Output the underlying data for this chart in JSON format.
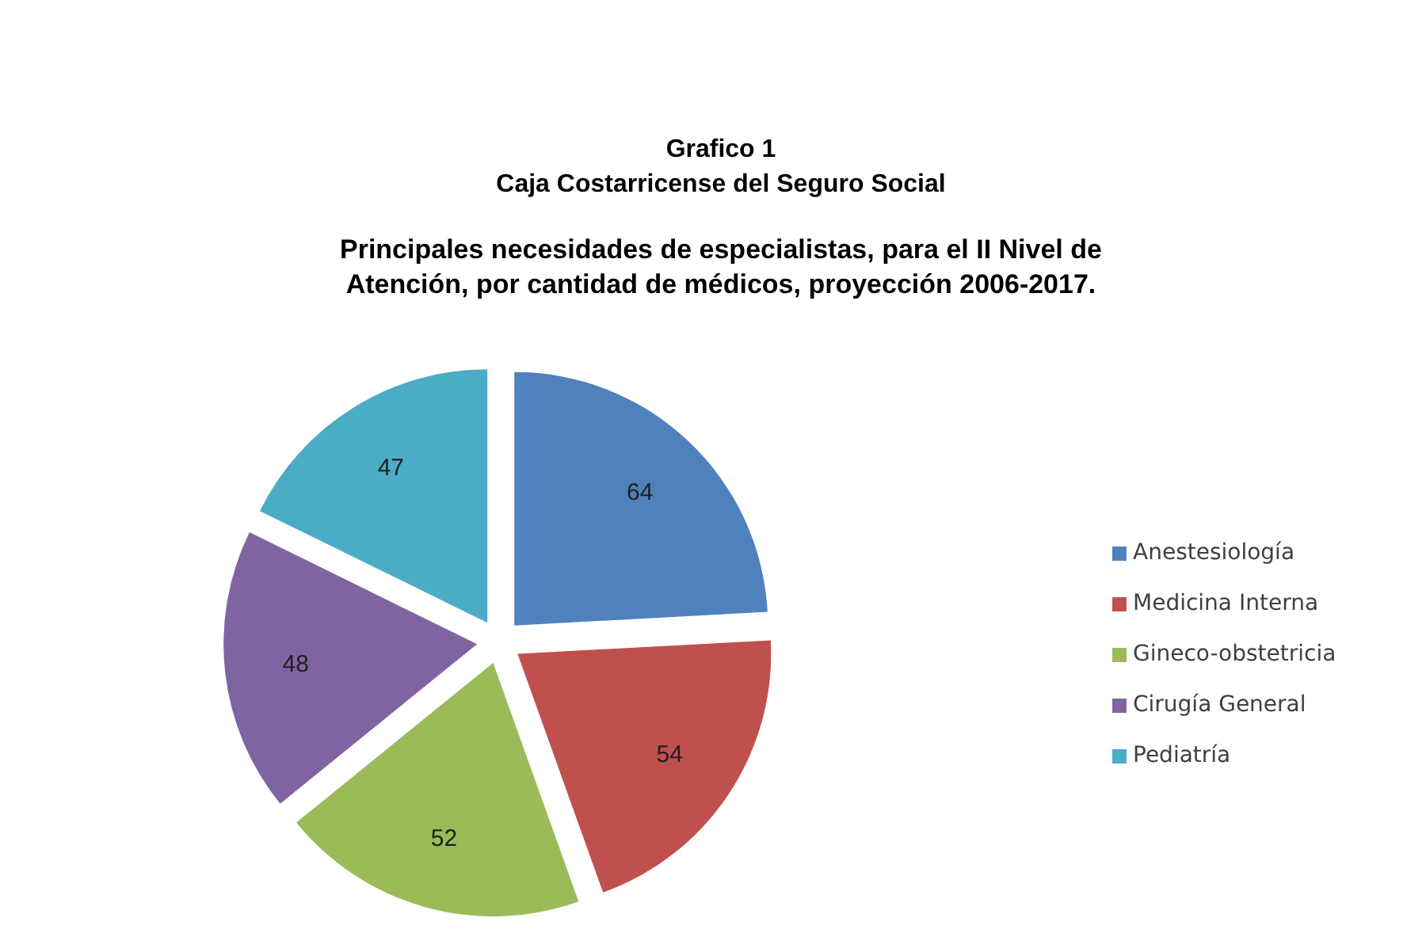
{
  "chart_data": {
    "type": "pie",
    "title": "Grafico 1\nCaja Costarricense del Seguro Social",
    "subtitle": "Principales necesidades de especialistas, para el II Nivel de\nAtención, por cantidad de médicos, proyección 2006-2017.",
    "categories": [
      "Anestesiología",
      "Medicina Interna",
      "Gineco-obstetricia",
      "Cirugía General",
      "Pediatría"
    ],
    "values": [
      64,
      54,
      52,
      48,
      47
    ],
    "colors": [
      "#4f81bd",
      "#c0504d",
      "#9bbb59",
      "#8064a2",
      "#4bacc6"
    ],
    "data_labels": true,
    "legend": "right"
  }
}
